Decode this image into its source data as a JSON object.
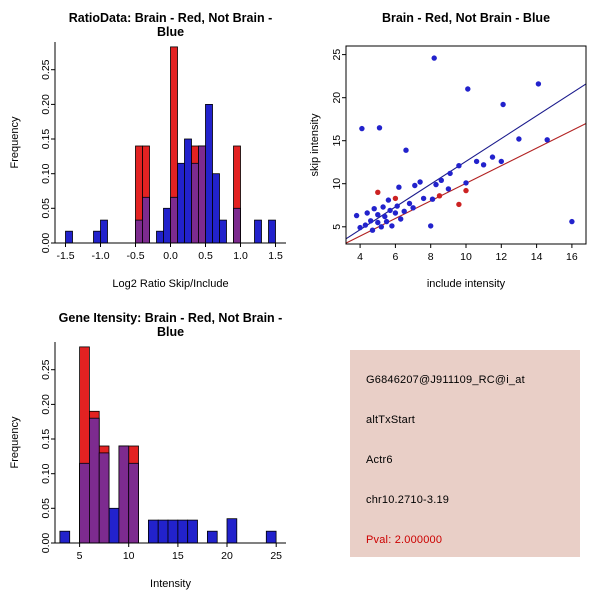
{
  "window": {
    "background": "#FFFFFF"
  },
  "colors": {
    "brain_red": "#E32222",
    "not_brain_blue": "#2222CC",
    "overlap_purple": "#7D2B8F",
    "fit_line_blue": "#1A1A8C",
    "fit_line_red": "#B22222",
    "info_box_bg": "#E9CFC7",
    "pval_red": "#CC0000"
  },
  "chart_data": [
    {
      "id": "ratio-histogram",
      "type": "histogram",
      "title": "RatioData: Brain - Red, Not Brain - Blue",
      "xlabel": "Log2 Ratio Skip/Include",
      "ylabel": "Frequency",
      "xlim": [
        -1.65,
        1.65
      ],
      "ylim": [
        0,
        0.29
      ],
      "xtick_values": [
        -1.5,
        -1.0,
        -0.5,
        0.0,
        0.5,
        1.0,
        1.5
      ],
      "xtick_labels": [
        "-1.5",
        "-1.0",
        "-0.5",
        "0.0",
        "0.5",
        "1.0",
        "1.5"
      ],
      "ytick_values": [
        0,
        0.05,
        0.1,
        0.15,
        0.2,
        0.25
      ],
      "ytick_labels": [
        "0.00",
        "0.05",
        "0.10",
        "0.15",
        "0.20",
        "0.25"
      ],
      "bin_width": 0.1,
      "legend": {
        "red": "Brain",
        "blue": "Not Brain"
      },
      "series": {
        "blue": {
          "name": "Not Brain",
          "color": "#2222CC",
          "bins": [
            [
              -1.5,
              0.017
            ],
            [
              -1.1,
              0.017
            ],
            [
              -1.0,
              0.033
            ],
            [
              -0.5,
              0.033
            ],
            [
              -0.4,
              0.066
            ],
            [
              -0.2,
              0.017
            ],
            [
              -0.1,
              0.05
            ],
            [
              0.0,
              0.066
            ],
            [
              0.1,
              0.115
            ],
            [
              0.2,
              0.15
            ],
            [
              0.3,
              0.115
            ],
            [
              0.4,
              0.14
            ],
            [
              0.5,
              0.2
            ],
            [
              0.6,
              0.1
            ],
            [
              0.7,
              0.033
            ],
            [
              0.9,
              0.05
            ],
            [
              1.2,
              0.033
            ],
            [
              1.4,
              0.033
            ]
          ]
        },
        "red": {
          "name": "Brain",
          "color": "#E32222",
          "bins": [
            [
              -0.5,
              0.14
            ],
            [
              -0.4,
              0.14
            ],
            [
              0.0,
              0.283
            ],
            [
              0.3,
              0.14
            ],
            [
              0.4,
              0.14
            ],
            [
              0.9,
              0.14
            ]
          ]
        },
        "overlap_color": "#7D2B8F"
      }
    },
    {
      "id": "intensity-scatter",
      "type": "scatter",
      "title": "Brain - Red, Not Brain - Blue",
      "xlabel": "include intensity",
      "ylabel": "skip intensity",
      "xlim": [
        3.2,
        16.8
      ],
      "ylim": [
        3,
        26
      ],
      "xtick_values": [
        4,
        6,
        8,
        10,
        12,
        14,
        16
      ],
      "xtick_labels": [
        "4",
        "6",
        "8",
        "10",
        "12",
        "14",
        "16"
      ],
      "ytick_values": [
        5,
        10,
        15,
        20,
        25
      ],
      "ytick_labels": [
        "5",
        "10",
        "15",
        "20",
        "25"
      ],
      "points": {
        "blue": {
          "name": "Not Brain",
          "color": "#2222CC",
          "xy": [
            [
              3.8,
              6.3
            ],
            [
              4.0,
              4.9
            ],
            [
              4.1,
              16.4
            ],
            [
              4.3,
              5.2
            ],
            [
              4.4,
              6.6
            ],
            [
              4.6,
              5.7
            ],
            [
              4.7,
              4.6
            ],
            [
              4.8,
              7.1
            ],
            [
              5.0,
              5.5
            ],
            [
              5.0,
              6.4
            ],
            [
              5.1,
              16.5
            ],
            [
              5.2,
              5.0
            ],
            [
              5.3,
              7.3
            ],
            [
              5.4,
              6.2
            ],
            [
              5.5,
              5.6
            ],
            [
              5.6,
              8.1
            ],
            [
              5.7,
              6.9
            ],
            [
              5.8,
              5.1
            ],
            [
              6.0,
              6.6
            ],
            [
              6.1,
              7.4
            ],
            [
              6.2,
              9.6
            ],
            [
              6.3,
              5.9
            ],
            [
              6.5,
              6.8
            ],
            [
              6.6,
              13.9
            ],
            [
              6.8,
              7.7
            ],
            [
              7.0,
              7.2
            ],
            [
              7.1,
              9.8
            ],
            [
              7.4,
              10.2
            ],
            [
              7.6,
              8.3
            ],
            [
              8.0,
              5.1
            ],
            [
              8.1,
              8.2
            ],
            [
              8.2,
              24.6
            ],
            [
              8.3,
              9.9
            ],
            [
              8.6,
              10.4
            ],
            [
              9.0,
              9.4
            ],
            [
              9.1,
              11.2
            ],
            [
              9.6,
              12.1
            ],
            [
              10.0,
              10.1
            ],
            [
              10.1,
              21.0
            ],
            [
              10.6,
              12.6
            ],
            [
              11.0,
              12.2
            ],
            [
              11.5,
              13.1
            ],
            [
              12.0,
              12.6
            ],
            [
              12.1,
              19.2
            ],
            [
              13.0,
              15.2
            ],
            [
              14.1,
              21.6
            ],
            [
              14.6,
              15.1
            ],
            [
              16.0,
              5.6
            ]
          ]
        },
        "red": {
          "name": "Brain",
          "color": "#CC2222",
          "xy": [
            [
              5.0,
              9.0
            ],
            [
              6.0,
              8.3
            ],
            [
              8.5,
              8.6
            ],
            [
              9.6,
              7.6
            ],
            [
              10.0,
              9.2
            ]
          ]
        }
      },
      "lines": [
        {
          "name": "not-brain-fit-line",
          "color": "#1A1A8C",
          "x1": 3.2,
          "y1": 3.6,
          "x2": 16.8,
          "y2": 21.6
        },
        {
          "name": "brain-fit-line",
          "color": "#B22222",
          "x1": 3.2,
          "y1": 3.1,
          "x2": 16.8,
          "y2": 17.0
        }
      ]
    },
    {
      "id": "gene-intensity-histogram",
      "type": "histogram",
      "title": "Gene Itensity: Brain - Red, Not Brain - Blue",
      "xlabel": "Intensity",
      "ylabel": "Frequency",
      "xlim": [
        2.5,
        26
      ],
      "ylim": [
        0,
        0.29
      ],
      "xtick_values": [
        5,
        10,
        15,
        20,
        25
      ],
      "xtick_labels": [
        "5",
        "10",
        "15",
        "20",
        "25"
      ],
      "ytick_values": [
        0,
        0.05,
        0.1,
        0.15,
        0.2,
        0.25
      ],
      "ytick_labels": [
        "0.00",
        "0.05",
        "0.10",
        "0.15",
        "0.20",
        "0.25"
      ],
      "bin_width": 1,
      "legend": {
        "red": "Brain",
        "blue": "Not Brain"
      },
      "series": {
        "blue": {
          "name": "Not Brain",
          "color": "#2222CC",
          "bins": [
            [
              3,
              0.017
            ],
            [
              5,
              0.115
            ],
            [
              6,
              0.18
            ],
            [
              7,
              0.13
            ],
            [
              8,
              0.05
            ],
            [
              9,
              0.14
            ],
            [
              10,
              0.115
            ],
            [
              12,
              0.033
            ],
            [
              13,
              0.033
            ],
            [
              14,
              0.033
            ],
            [
              15,
              0.033
            ],
            [
              16,
              0.033
            ],
            [
              18,
              0.017
            ],
            [
              20,
              0.035
            ],
            [
              24,
              0.017
            ]
          ]
        },
        "red": {
          "name": "Brain",
          "color": "#E32222",
          "bins": [
            [
              5,
              0.283
            ],
            [
              6,
              0.19
            ],
            [
              7,
              0.14
            ],
            [
              9,
              0.14
            ],
            [
              10,
              0.14
            ]
          ]
        },
        "overlap_color": "#7D2B8F"
      }
    }
  ],
  "info_panel": {
    "background": "#E9CFC7",
    "probe_id": "G6846207@J911109_RC@i_at",
    "event_type": "altTxStart",
    "gene": "Actr6",
    "location": "chr10.2710-3.19",
    "pval": "Pval: 2.000000",
    "pval_color": "#CC0000"
  }
}
